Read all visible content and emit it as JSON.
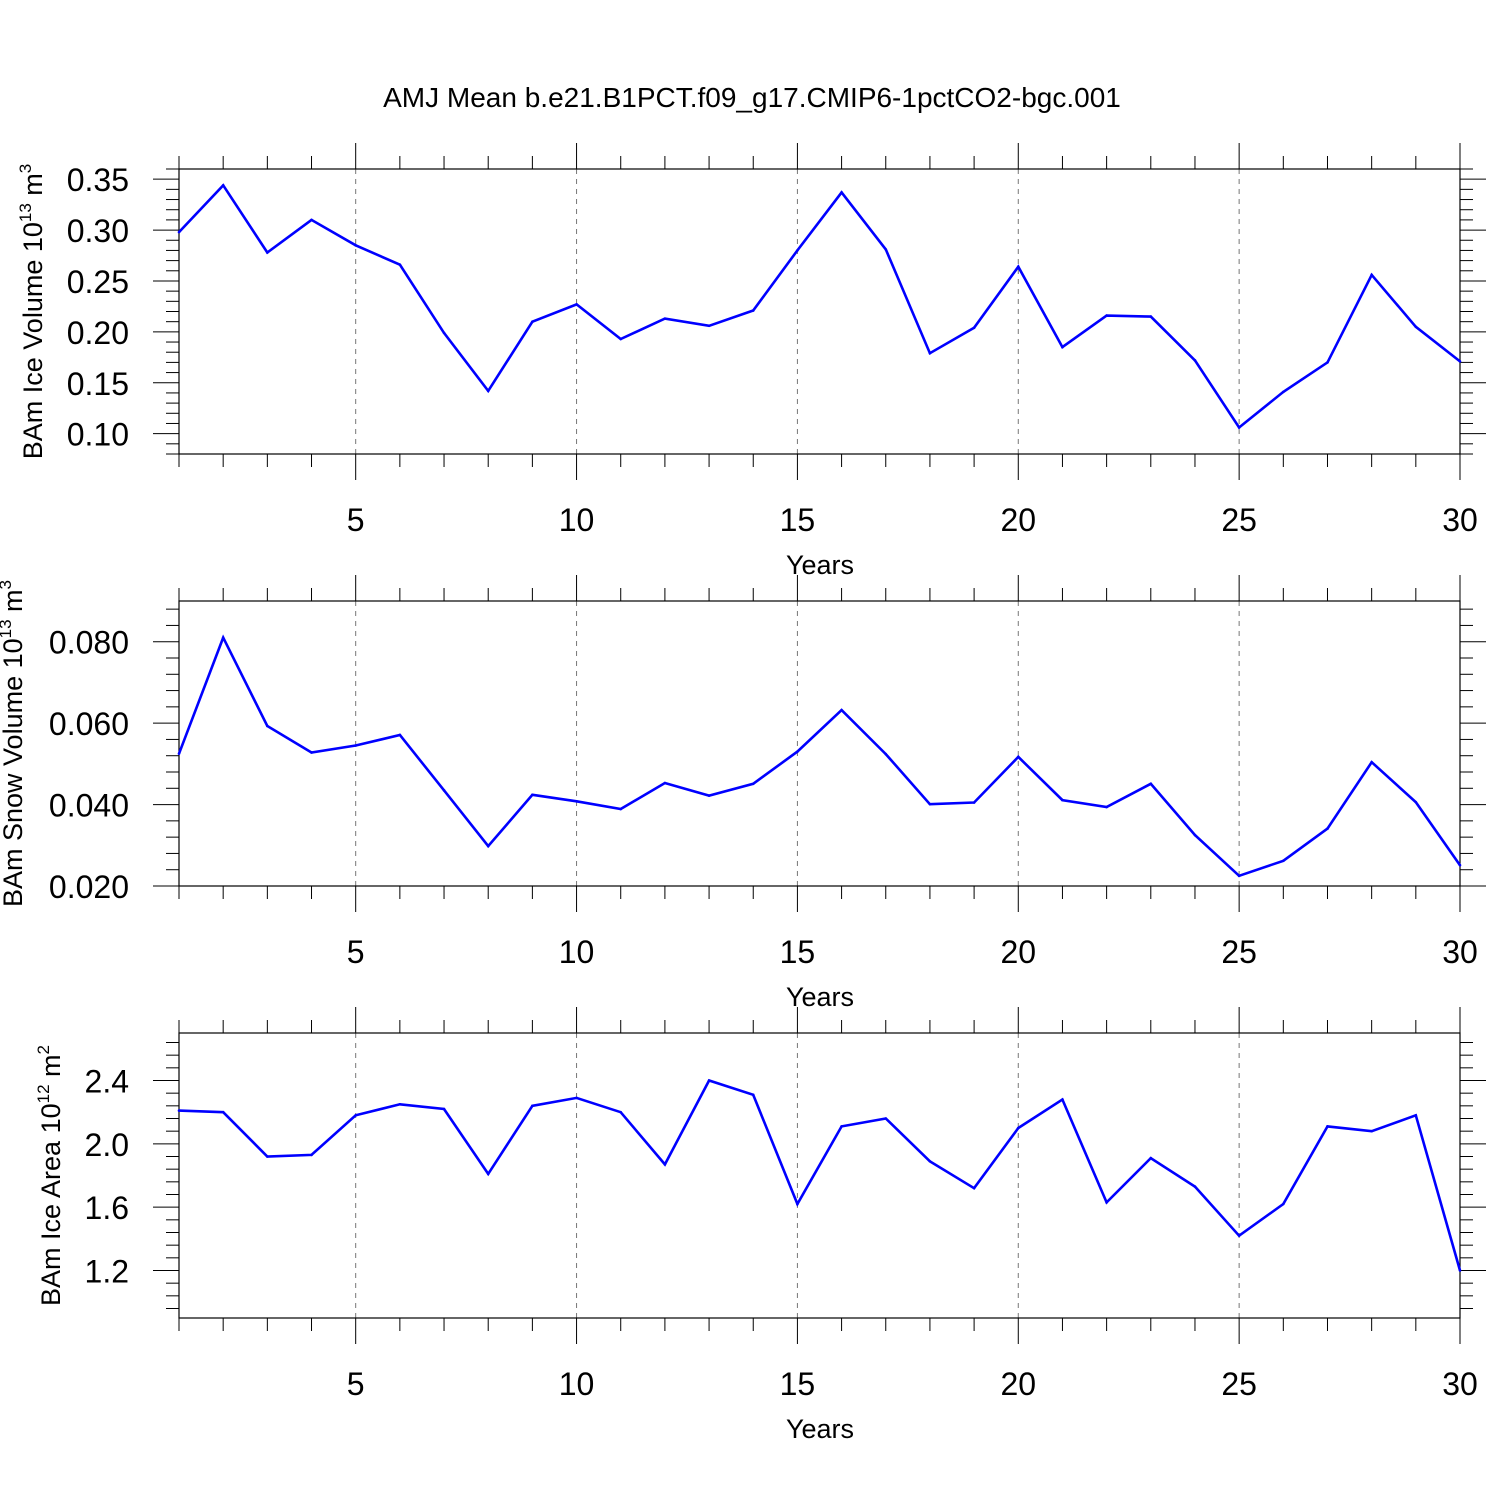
{
  "figure": {
    "title": "AMJ Mean b.e21.B1PCT.f09_g17.CMIP6-1pctCO2-bgc.001"
  },
  "chart_data": [
    {
      "type": "line",
      "title": "AMJ Mean b.e21.B1PCT.f09_g17.CMIP6-1pctCO2-bgc.001",
      "xlabel": "Years",
      "ylabel": "BAm Ice Volume 10",
      "ylabel_exp": "13",
      "ylabel_unit": " m",
      "ylabel_unit_exp": "3",
      "xlim": [
        1,
        30
      ],
      "ylim": [
        0.08,
        0.36
      ],
      "xticks": [
        5,
        10,
        15,
        20,
        25,
        30
      ],
      "xtick_labels": [
        "5",
        "10",
        "15",
        "20",
        "25",
        "30"
      ],
      "yticks": [
        0.1,
        0.15,
        0.2,
        0.25,
        0.3,
        0.35
      ],
      "ytick_labels": [
        "0.10",
        "0.15",
        "0.20",
        "0.25",
        "0.30",
        "0.35"
      ],
      "grid": "vertical dashed at major x ticks",
      "color": "#0000ff",
      "x": [
        1,
        2,
        3,
        4,
        5,
        6,
        7,
        8,
        9,
        10,
        11,
        12,
        13,
        14,
        15,
        16,
        17,
        18,
        19,
        20,
        21,
        22,
        23,
        24,
        25,
        26,
        27,
        28,
        29,
        30
      ],
      "values": [
        0.298,
        0.344,
        0.278,
        0.31,
        0.285,
        0.266,
        0.199,
        0.142,
        0.21,
        0.227,
        0.193,
        0.213,
        0.206,
        0.221,
        0.28,
        0.337,
        0.281,
        0.179,
        0.204,
        0.264,
        0.185,
        0.216,
        0.215,
        0.172,
        0.106,
        0.141,
        0.17,
        0.256,
        0.205,
        0.171
      ]
    },
    {
      "type": "line",
      "xlabel": "Years",
      "ylabel": "BAm Snow Volume 10",
      "ylabel_exp": "13",
      "ylabel_unit": " m",
      "ylabel_unit_exp": "3",
      "xlim": [
        1,
        30
      ],
      "ylim": [
        0.02,
        0.09
      ],
      "xticks": [
        5,
        10,
        15,
        20,
        25,
        30
      ],
      "xtick_labels": [
        "5",
        "10",
        "15",
        "20",
        "25",
        "30"
      ],
      "yticks": [
        0.02,
        0.04,
        0.06,
        0.08
      ],
      "ytick_labels": [
        "0.020",
        "0.040",
        "0.060",
        "0.080"
      ],
      "grid": "vertical dashed at major x ticks",
      "color": "#0000ff",
      "x": [
        1,
        2,
        3,
        4,
        5,
        6,
        7,
        8,
        9,
        10,
        11,
        12,
        13,
        14,
        15,
        16,
        17,
        18,
        19,
        20,
        21,
        22,
        23,
        24,
        25,
        26,
        27,
        28,
        29,
        30
      ],
      "values": [
        0.0525,
        0.081,
        0.0593,
        0.0528,
        0.0545,
        0.0571,
        0.0435,
        0.0298,
        0.0424,
        0.0408,
        0.0389,
        0.0453,
        0.0422,
        0.0451,
        0.053,
        0.0632,
        0.0524,
        0.0401,
        0.0405,
        0.0517,
        0.0411,
        0.0394,
        0.0451,
        0.0325,
        0.0225,
        0.0262,
        0.0341,
        0.0504,
        0.0406,
        0.0251
      ]
    },
    {
      "type": "line",
      "xlabel": "Years",
      "ylabel": "BAm Ice Area 10",
      "ylabel_exp": "12",
      "ylabel_unit": " m",
      "ylabel_unit_exp": "2",
      "xlim": [
        1,
        30
      ],
      "ylim": [
        0.9,
        2.7
      ],
      "xticks": [
        5,
        10,
        15,
        20,
        25,
        30
      ],
      "xtick_labels": [
        "5",
        "10",
        "15",
        "20",
        "25",
        "30"
      ],
      "yticks": [
        1.2,
        1.6,
        2.0,
        2.4
      ],
      "ytick_labels": [
        "1.2",
        "1.6",
        "2.0",
        "2.4"
      ],
      "grid": "vertical dashed at major x ticks",
      "color": "#0000ff",
      "x": [
        1,
        2,
        3,
        4,
        5,
        6,
        7,
        8,
        9,
        10,
        11,
        12,
        13,
        14,
        15,
        16,
        17,
        18,
        19,
        20,
        21,
        22,
        23,
        24,
        25,
        26,
        27,
        28,
        29,
        30
      ],
      "values": [
        2.21,
        2.2,
        1.92,
        1.93,
        2.18,
        2.25,
        2.22,
        1.81,
        2.24,
        2.29,
        2.2,
        1.87,
        2.4,
        2.31,
        1.62,
        2.11,
        2.16,
        1.89,
        1.72,
        2.1,
        2.28,
        1.63,
        1.91,
        1.73,
        1.42,
        1.62,
        2.11,
        2.08,
        2.18,
        1.2
      ]
    }
  ]
}
